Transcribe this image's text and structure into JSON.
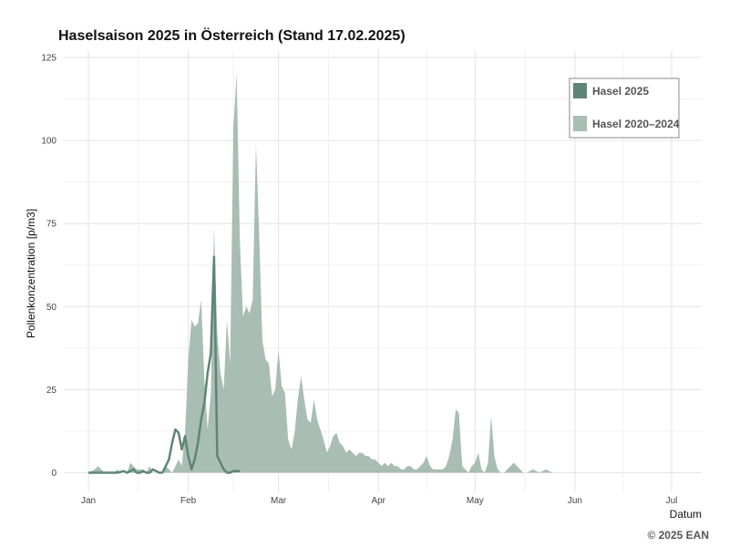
{
  "chart_data": {
    "type": "area",
    "title": "Haselsaison 2025 in Österreich (Stand 17.02.2025)",
    "xlabel": "Datum",
    "ylabel": "Pollenkonzentration [p/m3]",
    "ylim": [
      0,
      125
    ],
    "yticks": [
      0,
      25,
      50,
      75,
      100,
      125
    ],
    "xlim": [
      0,
      190
    ],
    "xticks": [
      {
        "label": "Jan",
        "day": 0
      },
      {
        "label": "Feb",
        "day": 31
      },
      {
        "label": "Mar",
        "day": 59
      },
      {
        "label": "Apr",
        "day": 90
      },
      {
        "label": "May",
        "day": 120
      },
      {
        "label": "Jun",
        "day": 151
      },
      {
        "label": "Jul",
        "day": 181
      }
    ],
    "legend": {
      "position": "top-right"
    },
    "grid": true,
    "credit": "© 2025 EAN",
    "series": [
      {
        "name": "Hasel 2025",
        "kind": "line",
        "color": "#5f8577",
        "x": [
          0,
          3,
          6,
          9,
          11,
          12,
          13,
          14,
          15,
          16,
          17,
          18,
          19,
          20,
          21,
          22,
          23,
          24,
          25,
          26,
          27,
          28,
          29,
          30,
          31,
          32,
          33,
          34,
          35,
          36,
          37,
          38,
          39,
          40,
          41,
          42,
          43,
          44,
          45,
          46,
          47
        ],
        "y": [
          0,
          0,
          0,
          0,
          0.5,
          0,
          0.5,
          1,
          0,
          0,
          0.5,
          0,
          0,
          1,
          0.5,
          0,
          0,
          2,
          4,
          9,
          13,
          12,
          7,
          11,
          5,
          1,
          4,
          9,
          16,
          21,
          30,
          36,
          65,
          5,
          3,
          1,
          0,
          0,
          0.5,
          0.5,
          0.5
        ]
      },
      {
        "name": "Hasel 2020–2024",
        "kind": "area",
        "color": "#a8bdb4",
        "x": [
          0,
          2,
          3,
          4,
          5,
          6,
          7,
          8,
          9,
          10,
          11,
          12,
          13,
          14,
          15,
          16,
          17,
          18,
          19,
          20,
          21,
          22,
          23,
          24,
          25,
          26,
          27,
          28,
          29,
          30,
          31,
          32,
          33,
          34,
          35,
          36,
          37,
          38,
          39,
          40,
          41,
          42,
          43,
          44,
          45,
          46,
          47,
          48,
          49,
          50,
          51,
          52,
          53,
          54,
          55,
          56,
          57,
          58,
          59,
          60,
          61,
          62,
          63,
          64,
          65,
          66,
          67,
          68,
          69,
          70,
          71,
          72,
          73,
          74,
          75,
          76,
          77,
          78,
          79,
          80,
          81,
          82,
          83,
          84,
          85,
          86,
          87,
          88,
          89,
          90,
          91,
          92,
          93,
          94,
          95,
          96,
          97,
          98,
          99,
          100,
          101,
          102,
          103,
          104,
          105,
          106,
          107,
          108,
          109,
          110,
          111,
          112,
          113,
          114,
          115,
          116,
          117,
          118,
          119,
          120,
          121,
          122,
          123,
          124,
          125,
          126,
          127,
          128,
          129,
          130,
          131,
          132,
          133,
          134,
          135,
          136,
          138,
          140,
          142,
          144,
          146,
          148,
          150,
          155,
          160
        ],
        "y": [
          0,
          1,
          2,
          1,
          0,
          0,
          0,
          0,
          1,
          0,
          0,
          0,
          3,
          2,
          1,
          1,
          1,
          0,
          2,
          0,
          0,
          0,
          0,
          2,
          1,
          0,
          2,
          4,
          2,
          12,
          34,
          46,
          44,
          45,
          52,
          28,
          13,
          24,
          74,
          42,
          30,
          25,
          46,
          33,
          104,
          120,
          70,
          47,
          50,
          48,
          52,
          99,
          72,
          40,
          34,
          33,
          23,
          25,
          37,
          26,
          24,
          10,
          7,
          12,
          22,
          29,
          22,
          16,
          15,
          22,
          16,
          13,
          10,
          6,
          8,
          11,
          12,
          9,
          8,
          6,
          7,
          6,
          5,
          6,
          6,
          5,
          5,
          4,
          4,
          3,
          2,
          3,
          2,
          3,
          2,
          2,
          1,
          1,
          2,
          2,
          1,
          1,
          2,
          3,
          5,
          2,
          1,
          1,
          1,
          1,
          2,
          5,
          10,
          19,
          18,
          2,
          1,
          0,
          2,
          3,
          6,
          1,
          0,
          3,
          17,
          5,
          1,
          0,
          0,
          1,
          2,
          3,
          2,
          1,
          0,
          0,
          1,
          0,
          1,
          0,
          0,
          0,
          0,
          0,
          0
        ]
      }
    ]
  }
}
